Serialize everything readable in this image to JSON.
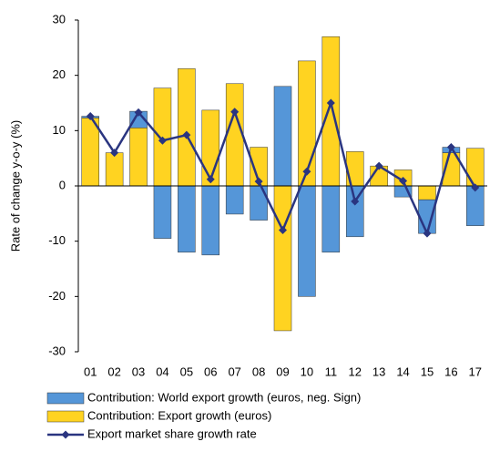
{
  "chart_data": {
    "type": "bar-line",
    "y_label": "Rate of change y-o-y (%)",
    "categories": [
      "01",
      "02",
      "03",
      "04",
      "05",
      "06",
      "07",
      "08",
      "09",
      "10",
      "11",
      "12",
      "13",
      "14",
      "15",
      "16",
      "17"
    ],
    "series": [
      {
        "name": "Contribution: World export growth (euros, neg. Sign)",
        "type": "bar",
        "color": "#5596d8",
        "values": [
          0.3,
          0,
          3,
          -9.5,
          -12,
          -12.5,
          -5.1,
          -6.2,
          18,
          -20,
          -12,
          -9.2,
          0,
          -2,
          -6.1,
          1,
          -7.2
        ]
      },
      {
        "name": "Contribution: Export growth (euros)",
        "type": "bar",
        "color": "#ffd321",
        "values": [
          12.3,
          6,
          10.5,
          17.7,
          21.2,
          13.7,
          18.5,
          7,
          -26.2,
          22.6,
          27,
          6.2,
          3.6,
          2.9,
          -2.5,
          6,
          6.8
        ]
      },
      {
        "name": "Export market share growth rate",
        "type": "line",
        "color": "#2a3580",
        "values": [
          12.6,
          6,
          13.3,
          8.2,
          9.2,
          1.2,
          13.4,
          0.8,
          -8,
          2.6,
          15,
          -2.8,
          3.6,
          0.9,
          -8.6,
          7,
          -0.3
        ]
      }
    ],
    "ylim": [
      -30,
      30
    ],
    "yticks": [
      -30,
      -20,
      -10,
      0,
      10,
      20,
      30
    ]
  }
}
